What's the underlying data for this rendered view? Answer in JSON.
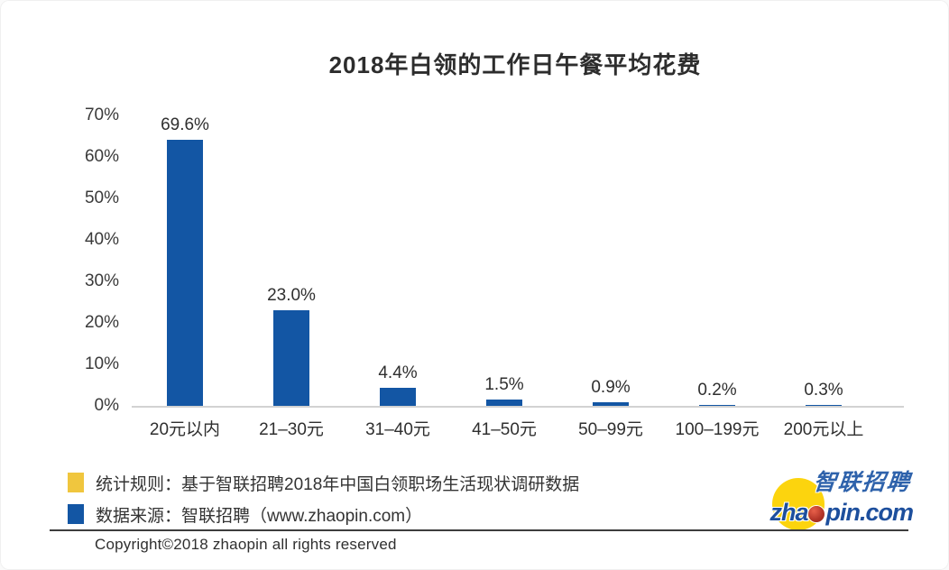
{
  "chart_data": {
    "type": "bar",
    "title": "2018年白领的工作日午餐平均花费",
    "categories": [
      "20元以内",
      "21–30元",
      "31–40元",
      "41–50元",
      "50–99元",
      "100–199元",
      "200元以上"
    ],
    "values": [
      69.6,
      23.0,
      4.4,
      1.5,
      0.9,
      0.2,
      0.3
    ],
    "value_labels": [
      "69.6%",
      "23.0%",
      "4.4%",
      "1.5%",
      "0.9%",
      "0.2%",
      "0.3%"
    ],
    "xlabel": "",
    "ylabel": "",
    "ylim": [
      0,
      70
    ],
    "yticks": [
      0,
      10,
      20,
      30,
      40,
      50,
      60,
      70
    ],
    "ytick_labels": [
      "0%",
      "10%",
      "20%",
      "30%",
      "40%",
      "50%",
      "60%",
      "70%"
    ],
    "grid": false,
    "legend_position": "none",
    "bar_color": "#1356a4"
  },
  "legend": {
    "items": [
      {
        "swatch_color": "#f0c63e",
        "label": "统计规则：基于智联招聘2018年中国白领职场生活现状调研数据"
      },
      {
        "swatch_color": "#1356a4",
        "label": "数据来源：智联招聘（www.zhaopin.com）"
      }
    ]
  },
  "logo": {
    "cn": "智联招聘",
    "en_prefix": "zha",
    "en_suffix": "pin.com",
    "colors": {
      "blue": "#2356a8",
      "yellow": "#fcd40e",
      "red": "#b5372a"
    }
  },
  "footer": {
    "copyright": "Copyright©2018 zhaopin all rights reserved"
  }
}
